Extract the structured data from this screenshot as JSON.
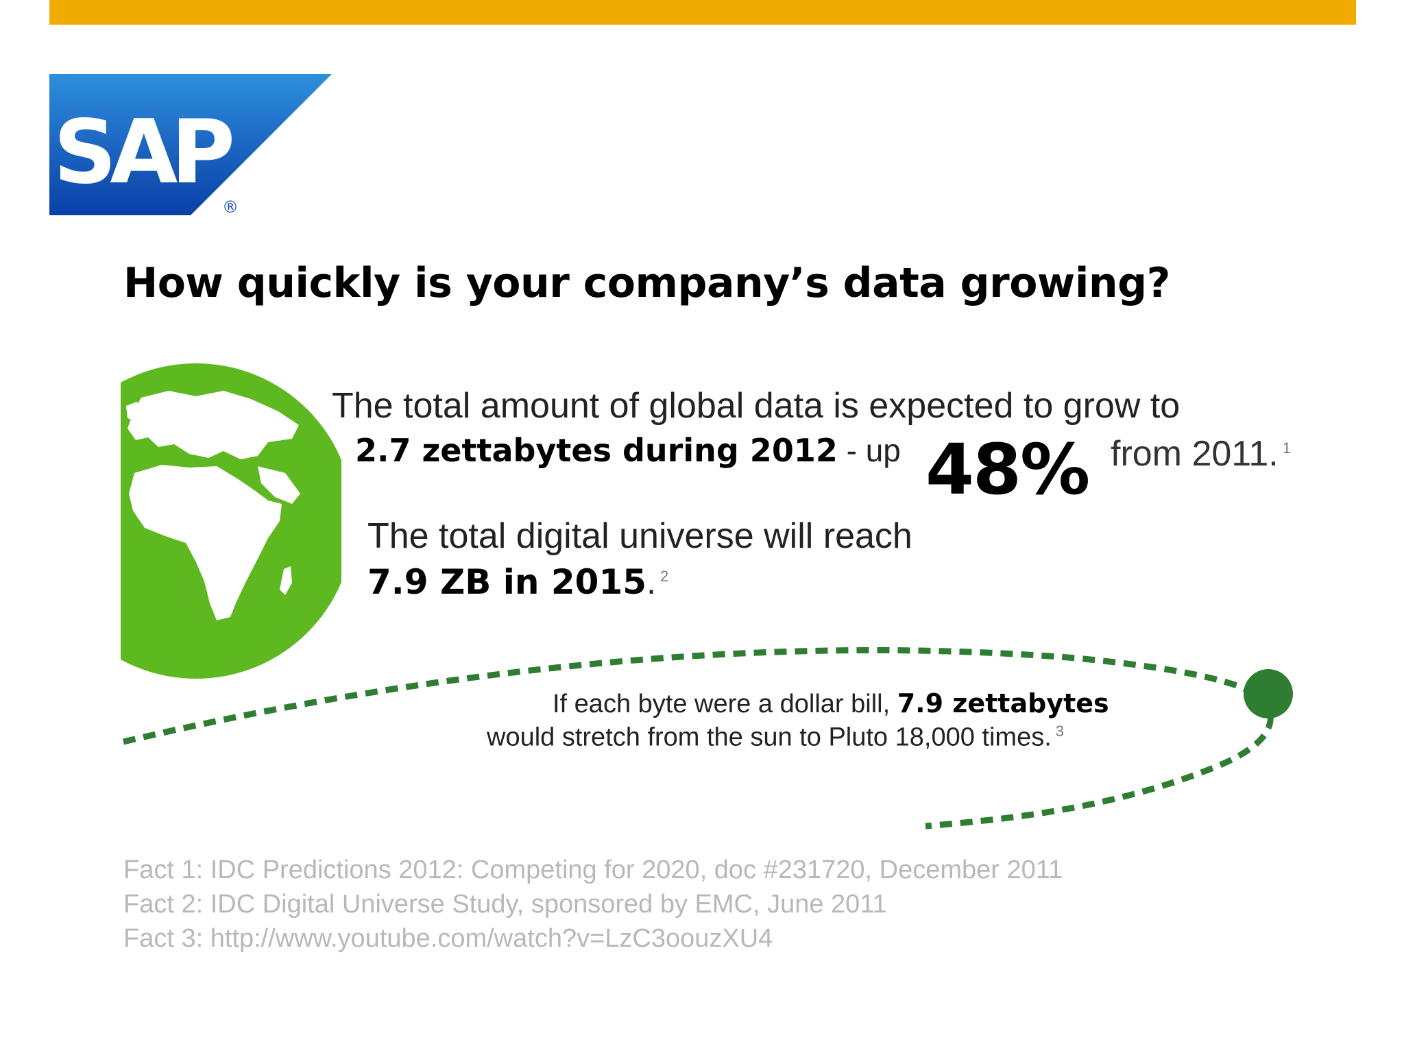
{
  "colors": {
    "top_bar": "#F0AB00",
    "sap_blue_light": "#2E8FDC",
    "sap_blue_dark": "#0A3FA8",
    "globe_green": "#5DB91F",
    "orbit_green": "#2E7D32",
    "reference_gray": "#B8B8B8"
  },
  "logo": {
    "text": "SAP",
    "registered": "®"
  },
  "title": "How quickly is your company’s data growing?",
  "fact1": {
    "line1": "The total amount of global data is expected to grow to",
    "bold": "2.7 zettabytes during 2012",
    "mid": " - up",
    "big_percent": "48%",
    "tail": "from 2011.",
    "footnote": "1"
  },
  "fact2": {
    "line1": "The total digital universe will reach",
    "bold": "7.9 ZB in 2015",
    "tail": ".",
    "footnote": "2"
  },
  "fact3": {
    "line1_pre": "If each byte were a dollar bill, ",
    "line1_bold": "7.9 zettabytes",
    "line2": "would stretch from the sun to Pluto 18,000 times.",
    "footnote": "3"
  },
  "references": [
    "Fact 1: IDC Predictions 2012: Competing for 2020, doc #231720, December 2011",
    "Fact 2:  IDC Digital Universe Study, sponsored by EMC, June 2011",
    "Fact 3: http://www.youtube.com/watch?v=LzC3oouzXU4"
  ]
}
